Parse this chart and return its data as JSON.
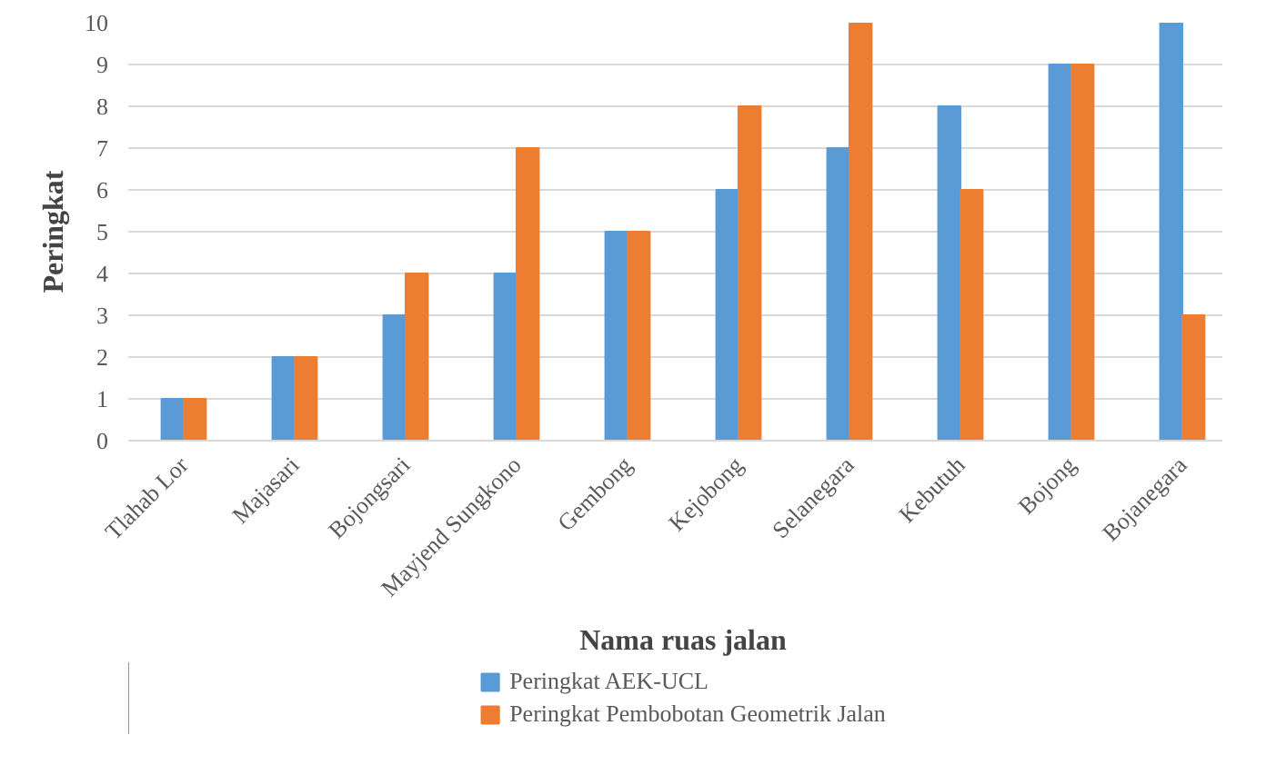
{
  "chart_data": {
    "type": "bar",
    "xlabel": "Nama ruas jalan",
    "ylabel": "Peringkat",
    "categories": [
      "Tlahab Lor",
      "Majasari",
      "Bojongsari",
      "Mayjend Sungkono",
      "Gembong",
      "Kejobong",
      "Selanegara",
      "Kebutuh",
      "Bojong",
      "Bojanegara"
    ],
    "series": [
      {
        "name": "Peringkat AEK-UCL",
        "color": "#5b9bd5",
        "values": [
          1,
          2,
          3,
          4,
          5,
          6,
          7,
          8,
          9,
          10
        ]
      },
      {
        "name": "Peringkat Pembobotan Geometrik Jalan",
        "color": "#ed7d31",
        "values": [
          1,
          2,
          4,
          7,
          5,
          8,
          10,
          6,
          9,
          3
        ]
      }
    ],
    "ylim": [
      0,
      10
    ],
    "yticks": [
      0,
      1,
      2,
      3,
      4,
      5,
      6,
      7,
      8,
      9,
      10
    ],
    "grid": "y",
    "legend": "bottom"
  }
}
